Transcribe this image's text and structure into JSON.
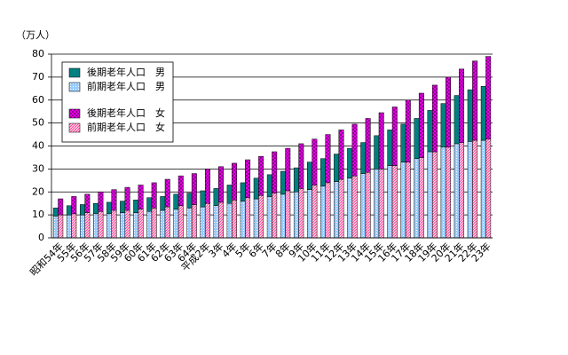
{
  "chart_data": {
    "type": "stacked_grouped_bar",
    "y_label": "（万人）",
    "categories": [
      "昭和54年",
      "55年",
      "56年",
      "57年",
      "58年",
      "59年",
      "60年",
      "61年",
      "62年",
      "63年",
      "64年",
      "平成2年",
      "3年",
      "4年",
      "5年",
      "6年",
      "7年",
      "8年",
      "9年",
      "10年",
      "11年",
      "12年",
      "13年",
      "14年",
      "15年",
      "16年",
      "17年",
      "18年",
      "19年",
      "20年",
      "21年",
      "22年",
      "23年"
    ],
    "series": [
      {
        "name": "後期老年人口　男",
        "color": "#008080",
        "pattern": "solid",
        "stack": "男",
        "values": [
          3.5,
          4,
          4.5,
          4.5,
          5,
          5,
          5.5,
          6,
          6,
          6.5,
          6.5,
          7,
          7.5,
          8,
          8,
          9,
          9.5,
          10,
          10.5,
          12,
          12,
          12,
          13,
          13.5,
          14.5,
          15.5,
          16.5,
          17.5,
          18,
          19,
          21,
          22.5,
          23.5
        ]
      },
      {
        "name": "前期老年人口　男",
        "color": "#99ccff",
        "pattern": "dots",
        "stack": "男",
        "values": [
          9.5,
          10,
          10,
          10.5,
          10.5,
          11,
          11,
          11.5,
          12,
          12.5,
          13,
          13.5,
          14,
          15,
          16,
          17,
          18,
          19,
          20,
          21,
          22.5,
          24.5,
          26,
          28,
          30,
          31.5,
          33,
          34.5,
          37.5,
          39.5,
          41,
          42,
          42.5
        ]
      },
      {
        "name": "後期老年人口　女",
        "color": "#ff00ff",
        "pattern": "crosshatch",
        "stack": "女",
        "values": [
          7,
          7.5,
          8,
          8.5,
          9,
          10,
          10.5,
          11,
          12,
          13,
          13.5,
          15,
          15.5,
          16,
          16.5,
          17,
          18,
          18.5,
          19.5,
          20,
          21,
          21.5,
          22.5,
          23.5,
          24.5,
          25.5,
          27,
          28,
          29,
          30.5,
          32,
          34.5,
          36
        ]
      },
      {
        "name": "前期老年人口　女",
        "color": "#ff99cc",
        "pattern": "diagonal",
        "stack": "女",
        "values": [
          10,
          10.5,
          11,
          11.5,
          12,
          12,
          12.5,
          13,
          13.5,
          14,
          14.5,
          15,
          15.5,
          16.5,
          17.5,
          18.5,
          19.5,
          20.5,
          21.5,
          23,
          24,
          25.5,
          27,
          28.5,
          30,
          31.5,
          33,
          35,
          37.5,
          39.5,
          41.5,
          42.5,
          43
        ]
      }
    ],
    "ylim": [
      0,
      80
    ],
    "yticks": [
      0,
      10,
      20,
      30,
      40,
      50,
      60,
      70,
      80
    ],
    "grid": true
  }
}
